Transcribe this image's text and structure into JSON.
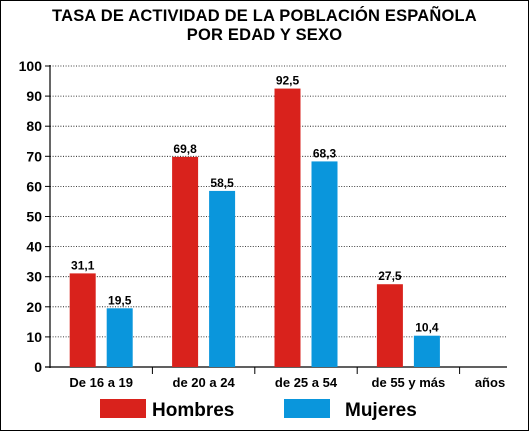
{
  "chart_data": {
    "type": "bar",
    "title_lines": [
      "TASA DE ACTIVIDAD DE LA POBLACIÓN ESPAÑOLA",
      "POR EDAD Y SEXO"
    ],
    "categories": [
      "De 16 a 19",
      "de 20 a 24",
      "de 25 a 54",
      "de 55 y más"
    ],
    "x_unit_label": "años",
    "series": [
      {
        "name": "Hombres",
        "color": "#d9221c",
        "values": [
          31.1,
          69.8,
          92.5,
          27.5
        ],
        "labels": [
          "31,1",
          "69,8",
          "92,5",
          "27,5"
        ]
      },
      {
        "name": "Mujeres",
        "color": "#0a96dc",
        "values": [
          19.5,
          58.5,
          68.3,
          10.4
        ],
        "labels": [
          "19,5",
          "58,5",
          "68,3",
          "10,4"
        ]
      }
    ],
    "ylim": [
      0,
      100
    ],
    "yticks": [
      0,
      10,
      20,
      30,
      40,
      50,
      60,
      70,
      80,
      90,
      100
    ],
    "grid": true,
    "legend": "bottom"
  }
}
